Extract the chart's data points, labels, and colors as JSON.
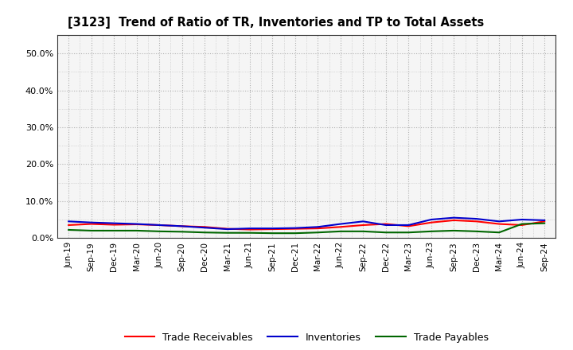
{
  "title": "[3123]  Trend of Ratio of TR, Inventories and TP to Total Assets",
  "x_labels": [
    "Jun-19",
    "Sep-19",
    "Dec-19",
    "Mar-20",
    "Jun-20",
    "Sep-20",
    "Dec-20",
    "Mar-21",
    "Jun-21",
    "Sep-21",
    "Dec-21",
    "Mar-22",
    "Jun-22",
    "Sep-22",
    "Dec-22",
    "Mar-23",
    "Jun-23",
    "Sep-23",
    "Dec-23",
    "Mar-24",
    "Jun-24",
    "Sep-24"
  ],
  "trade_receivables": [
    3.5,
    3.8,
    3.6,
    3.7,
    3.5,
    3.2,
    3.0,
    2.5,
    2.3,
    2.4,
    2.5,
    2.6,
    3.0,
    3.5,
    3.8,
    3.2,
    4.2,
    4.8,
    4.5,
    3.8,
    3.5,
    4.5
  ],
  "inventories": [
    4.5,
    4.2,
    4.0,
    3.8,
    3.5,
    3.2,
    2.8,
    2.4,
    2.6,
    2.6,
    2.7,
    3.0,
    3.8,
    4.5,
    3.5,
    3.5,
    5.0,
    5.5,
    5.2,
    4.5,
    5.0,
    4.8
  ],
  "trade_payables": [
    2.2,
    2.0,
    2.0,
    2.0,
    1.8,
    1.7,
    1.5,
    1.4,
    1.4,
    1.3,
    1.3,
    1.5,
    1.8,
    1.8,
    1.5,
    1.5,
    1.8,
    2.0,
    1.8,
    1.5,
    3.8,
    4.0
  ],
  "ylim": [
    0,
    55
  ],
  "yticks": [
    0,
    10,
    20,
    30,
    40,
    50
  ],
  "ytick_labels": [
    "0.0%",
    "10.0%",
    "20.0%",
    "30.0%",
    "40.0%",
    "50.0%"
  ],
  "line_colors": {
    "trade_receivables": "#ff0000",
    "inventories": "#0000cc",
    "trade_payables": "#006600"
  },
  "legend_labels": [
    "Trade Receivables",
    "Inventories",
    "Trade Payables"
  ],
  "bg_color": "#ffffff",
  "plot_bg_color": "#f5f5f5",
  "grid_color": "#aaaaaa"
}
